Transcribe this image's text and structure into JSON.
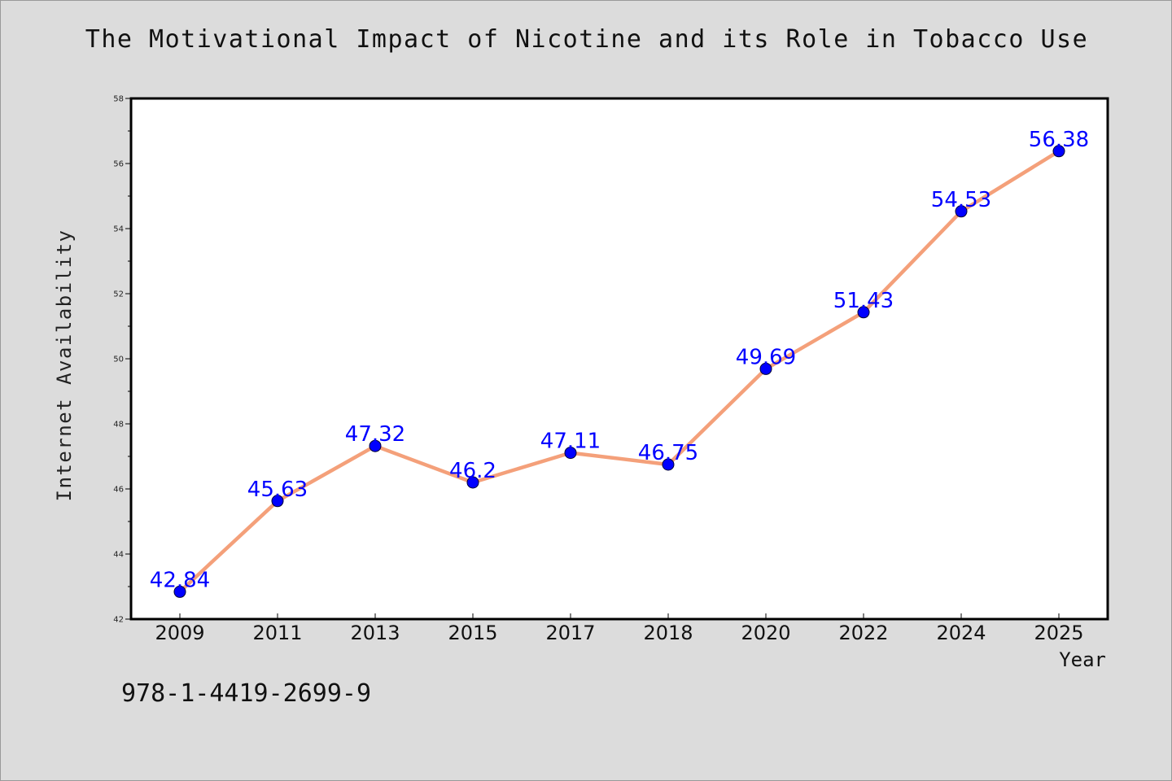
{
  "chart_data": {
    "type": "line",
    "title": "The Motivational Impact of Nicotine and its Role in Tobacco Use",
    "xlabel": "Year",
    "ylabel": "Internet Availability",
    "categories": [
      "2009",
      "2011",
      "2013",
      "2015",
      "2017",
      "2018",
      "2020",
      "2022",
      "2024",
      "2025"
    ],
    "series": [
      {
        "values": [
          42.84,
          45.63,
          47.32,
          46.2,
          47.11,
          46.75,
          49.69,
          51.43,
          54.53,
          56.38
        ],
        "labels": [
          "42.84",
          "45.63",
          "47.32",
          "46.2",
          "47.11",
          "46.75",
          "49.69",
          "51.43",
          "54.53",
          "56.38"
        ]
      }
    ],
    "ylim": [
      42,
      58
    ],
    "yticks": [
      "42",
      "44",
      "46",
      "48",
      "50",
      "52",
      "54",
      "56",
      "58"
    ],
    "grid": false,
    "legend": "none",
    "colors": {
      "line": "#f4a07a",
      "marker": "#0000ff",
      "data_label": "#0000ff",
      "background": "#dcdcdc",
      "plot_background": "#ffffff"
    }
  },
  "annotation": "978-1-4419-2699-9"
}
